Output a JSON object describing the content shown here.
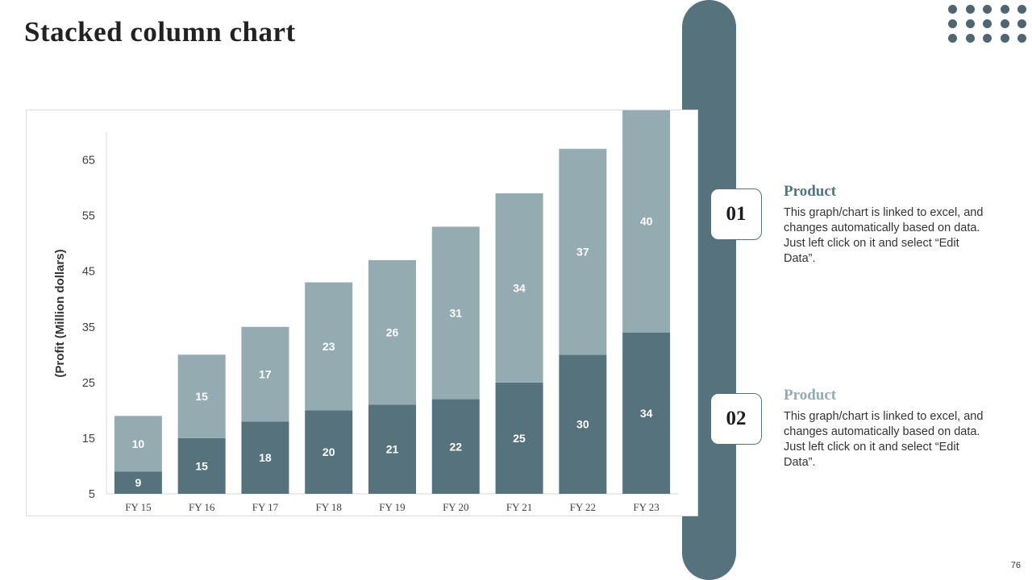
{
  "slide": {
    "title": "Stacked column chart",
    "page_number": "76"
  },
  "colors": {
    "series_bottom": "#56737d",
    "series_top": "#94abb2",
    "accent": "#56737d"
  },
  "items": [
    {
      "number": "01",
      "title": "Product",
      "title_color": "#56737d",
      "text": "This graph/chart is linked to excel, and changes automatically based on data. Just left click on it and select “Edit Data”."
    },
    {
      "number": "02",
      "title": "Product",
      "title_color": "#94abb2",
      "text": "This graph/chart is linked to excel, and changes automatically based on data. Just left click on it and select “Edit Data”."
    }
  ],
  "chart_data": {
    "type": "bar",
    "stacked": true,
    "title": "",
    "xlabel": "",
    "ylabel": "(Profit  (Million dollars)",
    "ylim": [
      5,
      70
    ],
    "yticks": [
      5,
      15,
      25,
      35,
      45,
      55,
      65
    ],
    "categories": [
      "FY 15",
      "FY 16",
      "FY 17",
      "FY 18",
      "FY 19",
      "FY 20",
      "FY 21",
      "FY 22",
      "FY 23"
    ],
    "series": [
      {
        "values": [
          9,
          15,
          18,
          20,
          21,
          22,
          25,
          30,
          34
        ],
        "color": "#56737d"
      },
      {
        "values": [
          10,
          15,
          17,
          23,
          26,
          31,
          34,
          37,
          40
        ],
        "color": "#94abb2"
      }
    ],
    "grid": false,
    "legend": "none",
    "data_labels": true
  }
}
